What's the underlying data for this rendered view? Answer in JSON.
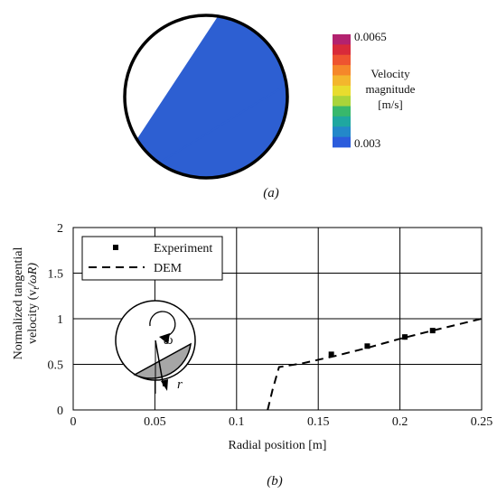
{
  "panel_a": {
    "caption": "(a)",
    "colorbar": {
      "max_label": "0.0065",
      "min_label": "0.003",
      "title_lines": [
        "Velocity",
        "magnitude",
        "[m/s]"
      ],
      "colors": [
        "#b3226f",
        "#d82a3a",
        "#ee5430",
        "#f5872a",
        "#f3b62d",
        "#e8dc2e",
        "#a9d43a",
        "#38b86c",
        "#1fa7a0",
        "#2388c9",
        "#2b5cdc"
      ]
    },
    "drum_fill_colors": [
      "#9c2a63",
      "#d8342c",
      "#f07a26",
      "#f4c321",
      "#aee03a",
      "#39c77b",
      "#1ea1bd",
      "#2d5fd2"
    ]
  },
  "panel_b": {
    "caption": "(b)",
    "inset": {
      "omega_label": "ω",
      "r_label": "r"
    }
  },
  "chart_data": {
    "type": "scatter",
    "xlabel": "Radial position [m]",
    "ylabel_lines": [
      "Normalized tangential",
      "velocity (v",
      "t",
      "/ωR)"
    ],
    "xlim": [
      0,
      0.25
    ],
    "ylim": [
      0,
      2
    ],
    "xticks": [
      0,
      0.05,
      0.1,
      0.15,
      0.2,
      0.25
    ],
    "xtick_labels": [
      "0",
      "0.05",
      "0.1",
      "0.15",
      "0.2",
      "0.25"
    ],
    "yticks": [
      0,
      0.5,
      1,
      1.5,
      2
    ],
    "ytick_labels": [
      "0",
      "0.5",
      "1",
      "1.5",
      "2"
    ],
    "grid": true,
    "legend_position": "top-left",
    "series": [
      {
        "name": "Experiment",
        "style": "square-markers",
        "x": [
          0.158,
          0.18,
          0.203,
          0.22
        ],
        "y": [
          0.61,
          0.7,
          0.8,
          0.87
        ],
        "error": [
          0.02,
          0.02,
          0.03,
          0.02
        ]
      },
      {
        "name": "DEM",
        "style": "dashed-line",
        "x": [
          0.119,
          0.122,
          0.126,
          0.14,
          0.16,
          0.18,
          0.2,
          0.22,
          0.25
        ],
        "y": [
          0.0,
          0.22,
          0.47,
          0.51,
          0.59,
          0.68,
          0.78,
          0.87,
          1.0
        ]
      }
    ]
  }
}
